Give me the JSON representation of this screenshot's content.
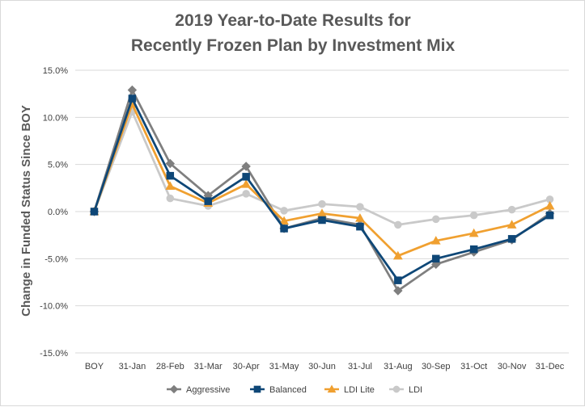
{
  "chart_data": {
    "type": "line",
    "title_line1": "2019 Year-to-Date Results for",
    "title_line2": "Recently Frozen Plan by Investment Mix",
    "xlabel": "",
    "ylabel": "Change in Funded Status Since BOY",
    "categories": [
      "BOY",
      "31-Jan",
      "28-Feb",
      "31-Mar",
      "30-Apr",
      "31-May",
      "30-Jun",
      "31-Jul",
      "31-Aug",
      "30-Sep",
      "31-Oct",
      "30-Nov",
      "31-Dec"
    ],
    "yticks": [
      "15.0%",
      "10.0%",
      "5.0%",
      "0.0%",
      "-5.0%",
      "-10.0%",
      "-15.0%"
    ],
    "ylim": [
      -15,
      15
    ],
    "grid": true,
    "legend_position": "bottom",
    "series": [
      {
        "name": "Aggressive",
        "color": "#7f7f7f",
        "marker": "diamond",
        "values": [
          0.0,
          12.9,
          5.1,
          1.7,
          4.8,
          -1.8,
          -0.7,
          -1.4,
          -8.4,
          -5.6,
          -4.3,
          -3.0,
          -0.2
        ]
      },
      {
        "name": "Balanced",
        "color": "#0e4777",
        "marker": "square",
        "values": [
          0.0,
          12.0,
          3.8,
          1.1,
          3.7,
          -1.8,
          -0.9,
          -1.6,
          -7.3,
          -5.0,
          -4.0,
          -2.9,
          -0.4
        ]
      },
      {
        "name": "LDI Lite",
        "color": "#f0a030",
        "marker": "triangle",
        "values": [
          0.0,
          11.4,
          2.7,
          0.9,
          2.9,
          -1.0,
          -0.2,
          -0.7,
          -4.7,
          -3.1,
          -2.3,
          -1.4,
          0.6
        ]
      },
      {
        "name": "LDI",
        "color": "#c9c9c9",
        "marker": "circle",
        "values": [
          0.0,
          10.6,
          1.4,
          0.6,
          1.9,
          0.1,
          0.8,
          0.5,
          -1.4,
          -0.8,
          -0.4,
          0.2,
          1.3
        ]
      }
    ]
  }
}
